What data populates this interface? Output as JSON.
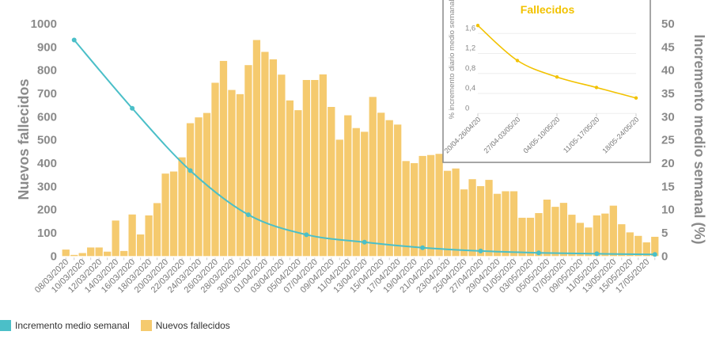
{
  "colors": {
    "bars": "#f5ca6e",
    "line": "#4bbfc8",
    "inset_line": "#f2c200",
    "inset_title": "#f2c200"
  },
  "chart_data": [
    {
      "type": "bar+line",
      "title": "",
      "ylabel": "Nuevos fallecidos",
      "y2label": "Incremento medio semanal (%)",
      "ylim": [
        0,
        1000
      ],
      "y2lim": [
        0,
        50
      ],
      "yticks": [
        0,
        100,
        200,
        300,
        400,
        500,
        600,
        700,
        800,
        900,
        1000
      ],
      "y2ticks": [
        0,
        5,
        10,
        15,
        20,
        25,
        30,
        35,
        40,
        45,
        50
      ],
      "start_date": "08/03/2020",
      "xtick_labels": [
        "08/03/2020",
        "10/03/2020",
        "12/03/2020",
        "14/03/2020",
        "16/03/2020",
        "18/03/2020",
        "20/03/2020",
        "22/03/2020",
        "24/03/2020",
        "26/03/2020",
        "28/03/2020",
        "30/03/2020",
        "01/04/2020",
        "03/04/2020",
        "05/04/2020",
        "07/04/2020",
        "09/04/2020",
        "11/04/2020",
        "13/04/2020",
        "15/04/2020",
        "17/04/2020",
        "19/04/2020",
        "21/04/2020",
        "23/04/2020",
        "25/04/2020",
        "27/04/2020",
        "29/04/2020",
        "01/05/2020",
        "03/05/2020",
        "05/05/2020",
        "07/05/2020",
        "09/05/2020",
        "11/05/2020",
        "13/05/2020",
        "15/05/2020",
        "17/05/2020"
      ],
      "series": [
        {
          "name": "Nuevos fallecidos",
          "type": "bar",
          "axis": "left",
          "values": [
            28,
            5,
            13,
            37,
            37,
            19,
            153,
            22,
            179,
            93,
            175,
            228,
            355,
            364,
            425,
            572,
            597,
            616,
            746,
            840,
            715,
            697,
            822,
            930,
            879,
            847,
            781,
            670,
            628,
            758,
            758,
            782,
            642,
            501,
            606,
            551,
            535,
            685,
            617,
            585,
            566,
            409,
            400,
            431,
            435,
            440,
            367,
            377,
            287,
            331,
            301,
            328,
            268,
            279,
            279,
            165,
            165,
            185,
            243,
            212,
            229,
            178,
            143,
            123,
            175,
            183,
            217,
            137,
            102,
            87,
            59,
            83
          ]
        },
        {
          "name": "Incremento medio semanal",
          "type": "line",
          "axis": "right",
          "x_index": [
            1,
            8,
            15,
            22,
            29,
            36,
            43,
            50,
            57,
            64,
            71
          ],
          "values": [
            46.5,
            31.8,
            18.4,
            8.9,
            4.6,
            3.0,
            1.8,
            1.1,
            0.7,
            0.5,
            0.35
          ]
        }
      ],
      "legend": "bottom-left"
    },
    {
      "type": "line",
      "title": "Fallecidos",
      "ylabel": "% incremento diario medio semanal",
      "ylim": [
        0,
        1.6
      ],
      "yticks": [
        "0",
        "0,4",
        "0,8",
        "1,2",
        "1,6"
      ],
      "categories": [
        "20/04-26/04/20",
        "27/04-03/05/20",
        "04/05-10/05/20",
        "11/05-17/05/20",
        "18/05-24/05/20"
      ],
      "values": [
        1.76,
        1.06,
        0.73,
        0.52,
        0.31
      ]
    }
  ],
  "legend": {
    "items": [
      "Incremento medio semanal",
      "Nuevos fallecidos"
    ]
  }
}
